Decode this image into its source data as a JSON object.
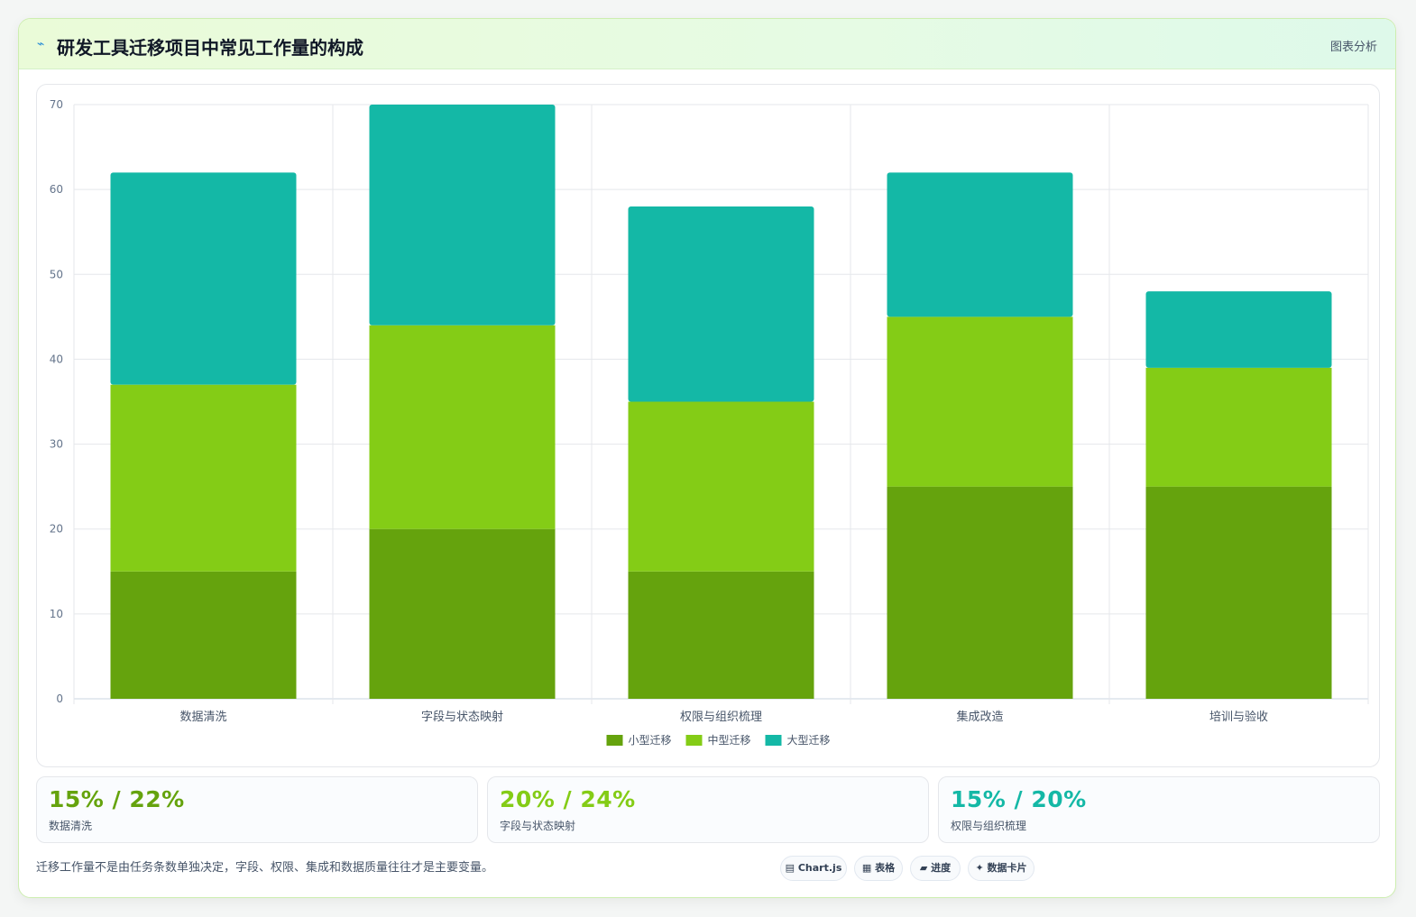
{
  "header": {
    "title": "研发工具迁移项目中常见工作量的构成",
    "badge": "图表分析"
  },
  "chart_data": {
    "type": "bar",
    "stacked": true,
    "categories": [
      "数据清洗",
      "字段与状态映射",
      "权限与组织梳理",
      "集成改造",
      "培训与验收"
    ],
    "series": [
      {
        "name": "小型迁移",
        "color": "#65a30d",
        "values": [
          15,
          20,
          15,
          25,
          25
        ]
      },
      {
        "name": "中型迁移",
        "color": "#84cc16",
        "values": [
          22,
          24,
          20,
          20,
          14
        ]
      },
      {
        "name": "大型迁移",
        "color": "#14b8a6",
        "values": [
          25,
          26,
          23,
          17,
          9
        ]
      }
    ],
    "ylim": [
      0,
      70
    ],
    "yticks": [
      0,
      10,
      20,
      30,
      40,
      50,
      60,
      70
    ],
    "grid": true,
    "legend": "bottom"
  },
  "stats": [
    {
      "value": "15% / 22%",
      "label": "数据清洗",
      "color": "#65a30d"
    },
    {
      "value": "20% / 24%",
      "label": "字段与状态映射",
      "color": "#84cc16"
    },
    {
      "value": "15% / 20%",
      "label": "权限与组织梳理",
      "color": "#14b8a6"
    }
  ],
  "footnote": "迁移工作量不是由任务条数单独决定，字段、权限、集成和数据质量往往才是主要变量。",
  "tags": [
    {
      "icon": "▤",
      "label": "Chart.js"
    },
    {
      "icon": "▦",
      "label": "表格"
    },
    {
      "icon": "▰",
      "label": "进度"
    },
    {
      "icon": "✦",
      "label": "数据卡片"
    }
  ]
}
